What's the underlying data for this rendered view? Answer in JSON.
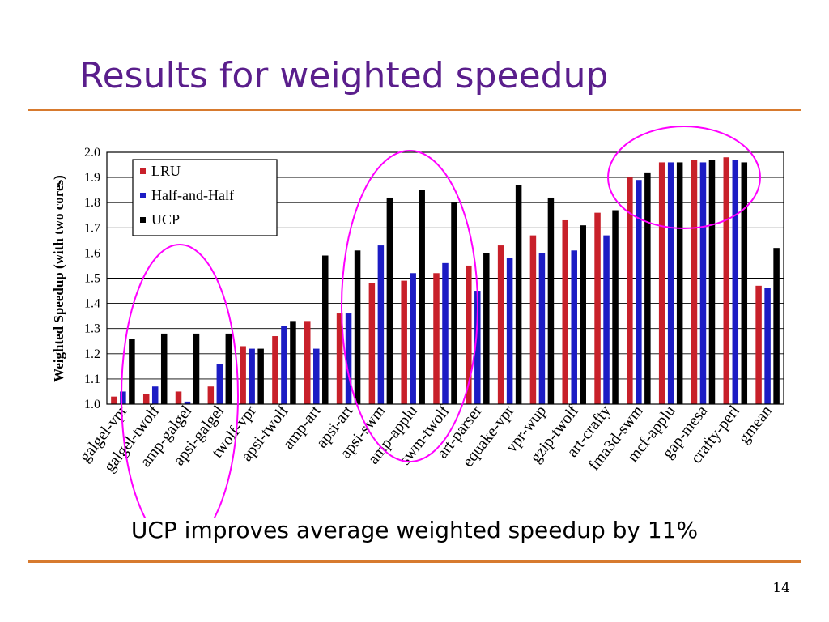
{
  "slide": {
    "title": "Results for weighted speedup",
    "caption": "UCP improves average weighted speedup by 11%",
    "page_number": "14"
  },
  "colors": {
    "title": "#5a1e8c",
    "rule": "#d77a2e",
    "highlight_ellipse": "#ff00ff"
  },
  "highlights": [
    "ellipse-low-speedup",
    "ellipse-mid-speedup",
    "ellipse-high-speedup"
  ],
  "chart_data": {
    "type": "bar",
    "title": "",
    "xlabel": "",
    "ylabel": "Weighted Speedup (with two cores)",
    "ylim": [
      1.0,
      2.0
    ],
    "yticks": [
      "1.0",
      "1.1",
      "1.2",
      "1.3",
      "1.4",
      "1.5",
      "1.6",
      "1.7",
      "1.8",
      "1.9",
      "2.0"
    ],
    "grid": true,
    "legend_position": "top-left",
    "categories": [
      "galgel-vpr",
      "galgel-twolf",
      "amp-galgel",
      "apsi-galgel",
      "twolf-vpr",
      "apsi-twolf",
      "amp-art",
      "apsi-art",
      "apsi-swm",
      "amp-applu",
      "swm-twolf",
      "art-parser",
      "equake-vpr",
      "vpr-wup",
      "gzip-twolf",
      "art-crafty",
      "fma3d-swm",
      "mcf-applu",
      "gap-mesa",
      "crafty-perl",
      "gmean"
    ],
    "series": [
      {
        "name": "LRU",
        "color": "#c8202a",
        "values": [
          1.03,
          1.04,
          1.05,
          1.07,
          1.23,
          1.27,
          1.33,
          1.36,
          1.48,
          1.49,
          1.52,
          1.55,
          1.63,
          1.67,
          1.73,
          1.76,
          1.9,
          1.96,
          1.97,
          1.98,
          1.47
        ]
      },
      {
        "name": "Half-and-Half",
        "color": "#1c1cc4",
        "values": [
          1.05,
          1.07,
          1.01,
          1.16,
          1.22,
          1.31,
          1.22,
          1.36,
          1.63,
          1.52,
          1.56,
          1.45,
          1.58,
          1.6,
          1.61,
          1.67,
          1.89,
          1.96,
          1.96,
          1.97,
          1.46
        ]
      },
      {
        "name": "UCP",
        "color": "#000000",
        "values": [
          1.26,
          1.28,
          1.28,
          1.28,
          1.22,
          1.33,
          1.59,
          1.61,
          1.82,
          1.85,
          1.8,
          1.6,
          1.87,
          1.82,
          1.71,
          1.77,
          1.92,
          1.96,
          1.97,
          1.96,
          1.62
        ]
      }
    ]
  }
}
